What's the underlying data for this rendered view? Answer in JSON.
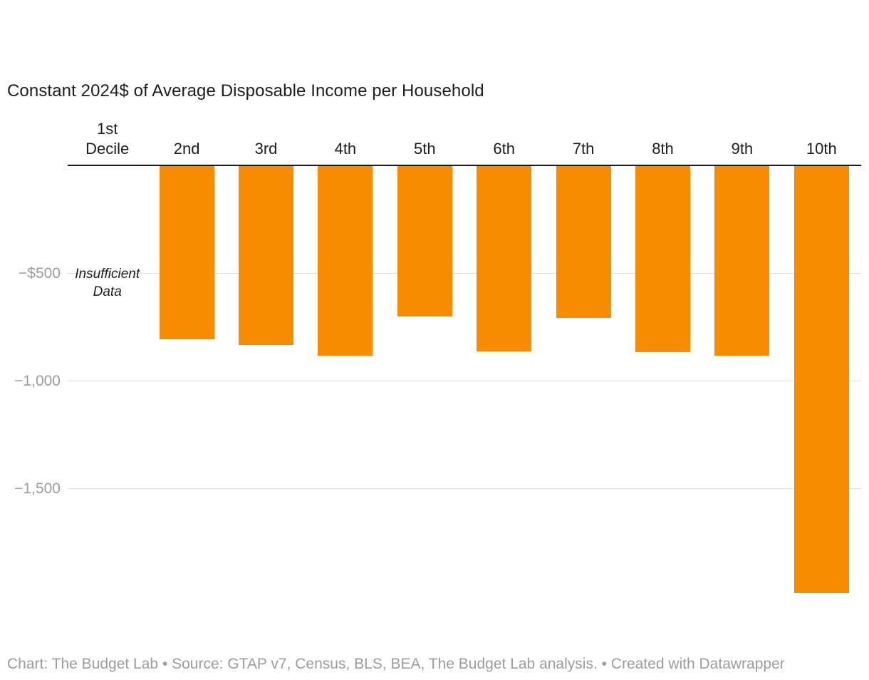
{
  "chart_data": {
    "type": "bar",
    "title": "Constant 2024$ of Average Disposable Income per Household",
    "categories": [
      "1st\nDecile",
      "2nd",
      "3rd",
      "4th",
      "5th",
      "6th",
      "7th",
      "8th",
      "9th",
      "10th"
    ],
    "values": [
      null,
      -805,
      -830,
      -880,
      -700,
      -860,
      -705,
      -865,
      -880,
      -1985
    ],
    "xlabel": "",
    "ylabel": "",
    "ylim": [
      -2000,
      0
    ],
    "grid": "horizontal",
    "legend": "none",
    "y_ticks": [
      {
        "label": "−$500",
        "value": -500
      },
      {
        "label": "−1,000",
        "value": -1000
      },
      {
        "label": "−1,500",
        "value": -1500
      }
    ],
    "annotation": {
      "text": "Insufficient\nData",
      "category": "1st Decile"
    },
    "colors": {
      "bar": "#f88c00",
      "axis": "#1a1a1a",
      "gridline": "#dedede",
      "tick_label": "#9c9c9c",
      "category_label": "#1d1d1d",
      "title": "#1d1d1d",
      "footer": "#9c9c9c"
    }
  },
  "footer": {
    "text": "Chart: The Budget Lab • Source: GTAP v7, Census, BLS, BEA, The Budget Lab analysis. • Created with Datawrapper"
  }
}
